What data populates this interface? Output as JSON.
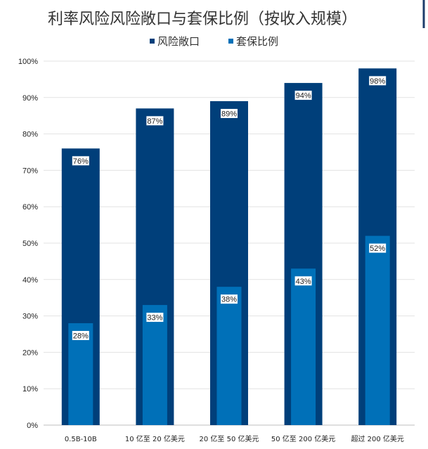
{
  "chart_data": {
    "type": "bar",
    "title": "利率风险风险敞口与套保比例（按收入规模）",
    "categories": [
      "0.5B-10B",
      "10 亿至 20 亿美元",
      "20 亿至 50 亿美元",
      "50 亿至 200 亿美元",
      "超过 200 亿美元"
    ],
    "series": [
      {
        "name": "风险敞口",
        "values": [
          76,
          87,
          89,
          94,
          98
        ],
        "labels": [
          "76%",
          "87%",
          "89%",
          "94%",
          "98%"
        ],
        "color": "#003f7a"
      },
      {
        "name": "套保比例",
        "values": [
          28,
          33,
          38,
          43,
          52
        ],
        "labels": [
          "28%",
          "33%",
          "38%",
          "43%",
          "52%"
        ],
        "color": "#0070b8"
      }
    ],
    "ylim": [
      0,
      100
    ],
    "yticks": [
      0,
      10,
      20,
      30,
      40,
      50,
      60,
      70,
      80,
      90,
      100
    ],
    "ytick_labels": [
      "0%",
      "10%",
      "20%",
      "30%",
      "40%",
      "50%",
      "60%",
      "70%",
      "80%",
      "90%",
      "100%"
    ],
    "grid": true,
    "legend_position": "top-center",
    "xlabel": "",
    "ylabel": ""
  }
}
